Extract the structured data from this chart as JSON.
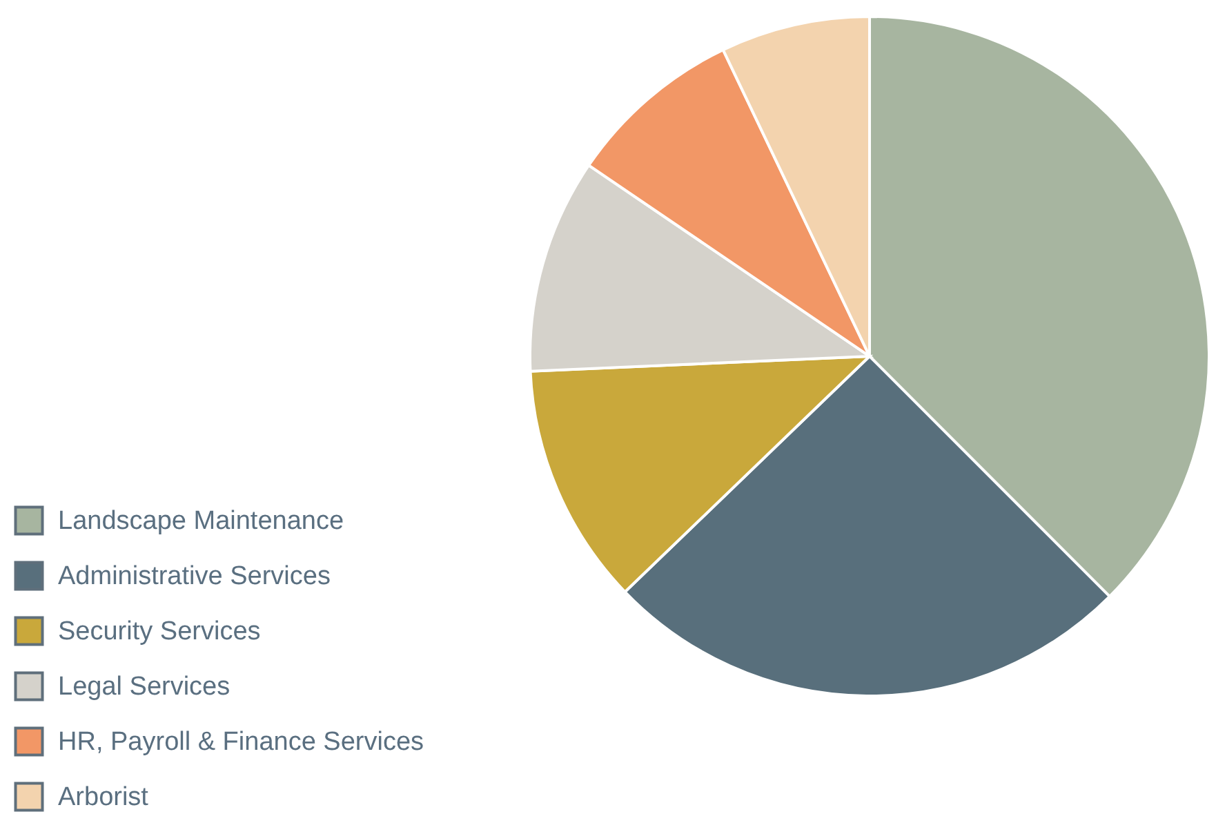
{
  "chart_data": {
    "type": "pie",
    "categories": [
      "Landscape Maintenance",
      "Administrative Services",
      "Security Services",
      "Legal Services",
      "HR, Payroll & Finance Services",
      "Arborist"
    ],
    "values": [
      37.5,
      25.3,
      11.5,
      10.2,
      8.4,
      7.1
    ],
    "colors": [
      "#a7b5a0",
      "#586f7c",
      "#c9a83b",
      "#d5d2cb",
      "#f29766",
      "#f3d3ae"
    ],
    "legend": "bottom left"
  }
}
